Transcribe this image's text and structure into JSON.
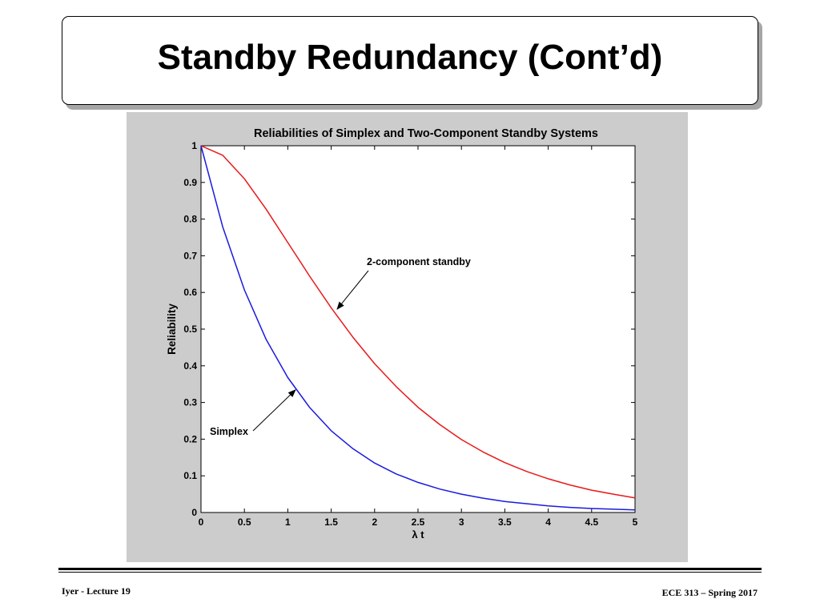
{
  "slide": {
    "title": "Standby Redundancy (Cont’d)",
    "footer_left": "Iyer  - Lecture 19",
    "footer_right": "ECE 313 – Spring 2017"
  },
  "colors": {
    "panel_background": "#cccccc",
    "plot_background": "#ffffff",
    "standby_curve": "#e8191a",
    "simplex_curve": "#1a1ae0"
  },
  "chart_data": {
    "type": "line",
    "title": "Reliabilities of Simplex and Two-Component Standby Systems",
    "xlabel": "λ t",
    "ylabel": "Reliability",
    "xlim": [
      0,
      5
    ],
    "ylim": [
      0,
      1
    ],
    "grid": false,
    "x_ticks": [
      "0",
      "0.5",
      "1",
      "1.5",
      "2",
      "2.5",
      "3",
      "3.5",
      "4",
      "4.5",
      "5"
    ],
    "y_ticks": [
      "0",
      "0.1",
      "0.2",
      "0.3",
      "0.4",
      "0.5",
      "0.6",
      "0.7",
      "0.8",
      "0.9",
      "1"
    ],
    "x": [
      0,
      0.25,
      0.5,
      0.75,
      1,
      1.25,
      1.5,
      1.75,
      2,
      2.25,
      2.5,
      2.75,
      3,
      3.25,
      3.5,
      3.75,
      4,
      4.25,
      4.5,
      4.75,
      5
    ],
    "series": [
      {
        "name": "2-component standby",
        "color": "#e8191a",
        "values": [
          1,
          0.974,
          0.91,
          0.827,
          0.736,
          0.645,
          0.558,
          0.478,
          0.406,
          0.343,
          0.287,
          0.24,
          0.199,
          0.165,
          0.136,
          0.112,
          0.092,
          0.075,
          0.061,
          0.05,
          0.04
        ]
      },
      {
        "name": "Simplex",
        "color": "#1a1ae0",
        "values": [
          1,
          0.779,
          0.607,
          0.472,
          0.368,
          0.287,
          0.223,
          0.174,
          0.135,
          0.105,
          0.082,
          0.064,
          0.05,
          0.039,
          0.03,
          0.024,
          0.018,
          0.014,
          0.011,
          0.009,
          0.007
        ]
      }
    ],
    "annotations": [
      {
        "text": "2-component standby",
        "series": "2-component standby",
        "x": 1.55,
        "y": 0.55
      },
      {
        "text": "Simplex",
        "series": "Simplex",
        "x": 1.07,
        "y": 0.33
      }
    ]
  }
}
